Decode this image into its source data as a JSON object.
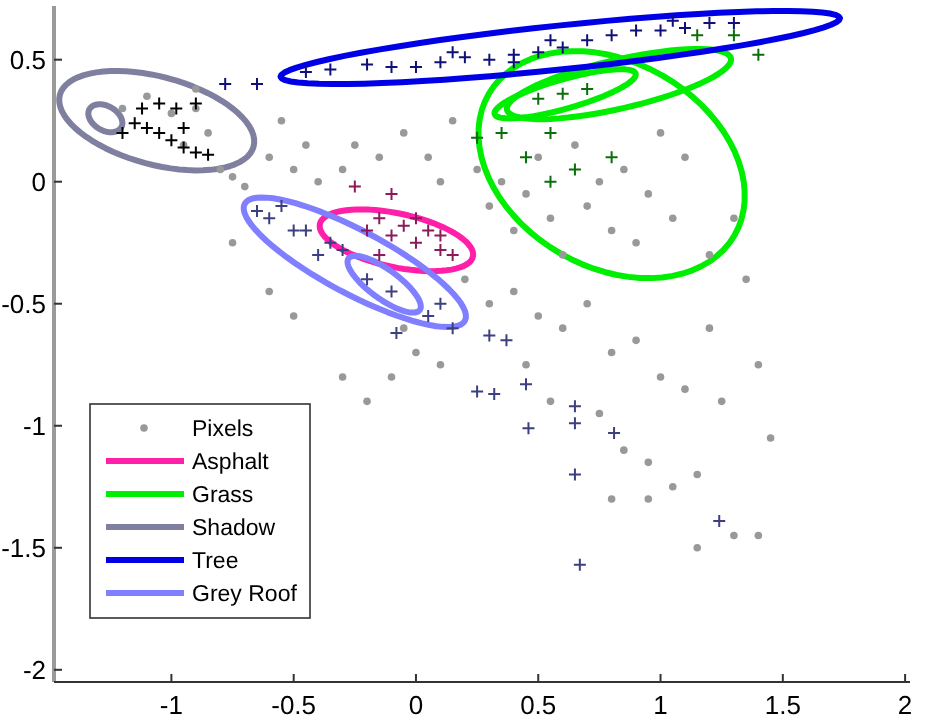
{
  "chart_data": {
    "type": "scatter",
    "legend": "bottom left",
    "grid": false,
    "xlim": [
      -1.48,
      2.02
    ],
    "xticks": [
      -1,
      -0.5,
      0,
      0.5,
      1,
      1.5,
      2
    ],
    "ylim": [
      -2.05,
      0.72
    ],
    "yticks": [
      -2,
      -1.5,
      -1,
      -0.5,
      0,
      0.5
    ],
    "series": [
      {
        "name": "Pixels",
        "marker": "circle",
        "color": "#999999",
        "x": [
          -0.9,
          -0.85,
          -0.95,
          -0.8,
          -0.75,
          -0.7,
          -0.6,
          -0.5,
          -0.45,
          -0.4,
          -0.3,
          -0.25,
          -0.15,
          -0.05,
          0.05,
          0.1,
          0.15,
          0.25,
          0.3,
          0.35,
          0.4,
          0.45,
          0.5,
          0.55,
          0.6,
          0.65,
          0.7,
          0.75,
          0.8,
          0.85,
          0.9,
          0.95,
          1.0,
          1.05,
          1.1,
          1.2,
          1.3,
          1.35,
          0.2,
          0.3,
          0.4,
          0.5,
          0.6,
          0.7,
          0.8,
          0.9,
          1.0,
          1.1,
          1.2,
          1.25,
          1.4,
          1.45,
          0.45,
          0.55,
          0.75,
          0.85,
          0.95,
          1.05,
          1.15,
          1.3,
          1.4,
          0.8,
          0.95,
          1.15,
          0.0,
          -0.1,
          -0.05,
          0.1,
          -0.5,
          -0.6,
          -0.75,
          -0.55,
          -1.1,
          -1.0,
          -1.2,
          -0.9,
          -0.3,
          -0.2
        ],
        "values": [
          0.3,
          0.2,
          0.15,
          0.05,
          0.02,
          -0.02,
          0.1,
          0.05,
          0.15,
          0.0,
          0.05,
          0.15,
          0.1,
          0.2,
          0.1,
          0.0,
          0.25,
          0.05,
          -0.1,
          0.0,
          -0.2,
          -0.05,
          0.1,
          -0.15,
          -0.3,
          0.15,
          -0.1,
          0.0,
          -0.2,
          0.05,
          -0.25,
          -0.05,
          0.2,
          -0.15,
          0.1,
          -0.3,
          -0.15,
          -0.4,
          -0.4,
          -0.5,
          -0.45,
          -0.55,
          -0.6,
          -0.5,
          -0.7,
          -0.65,
          -0.8,
          -0.85,
          -0.6,
          -0.9,
          -0.75,
          -1.05,
          -0.75,
          -0.9,
          -0.95,
          -1.1,
          -1.15,
          -1.25,
          -1.2,
          -1.45,
          -1.45,
          -1.3,
          -1.3,
          -1.5,
          -0.7,
          -0.8,
          -0.6,
          -0.75,
          -0.55,
          -0.45,
          -0.25,
          0.25,
          0.35,
          0.28,
          0.3,
          0.38,
          -0.8,
          -0.9
        ]
      },
      {
        "marker": "cross",
        "color": "#10107a",
        "x": [
          -0.78,
          -0.65,
          -0.45,
          -0.35,
          -0.2,
          -0.1,
          0.1,
          0.2,
          0.3,
          0.4,
          0.5,
          0.6,
          0.7,
          0.8,
          0.9,
          1.0,
          1.1,
          1.2,
          1.3,
          0.0,
          0.4,
          0.15,
          0.55,
          1.05
        ],
        "values": [
          0.4,
          0.4,
          0.45,
          0.46,
          0.48,
          0.47,
          0.49,
          0.51,
          0.5,
          0.52,
          0.53,
          0.55,
          0.58,
          0.6,
          0.62,
          0.62,
          0.63,
          0.65,
          0.65,
          0.47,
          0.49,
          0.53,
          0.58,
          0.66
        ]
      },
      {
        "marker": "cross",
        "color": "#3c3f80",
        "x": [
          -0.55,
          -0.45,
          -0.35,
          -0.2,
          -0.1,
          0.05,
          -0.4,
          -0.5,
          -0.6,
          0.15,
          -0.08,
          0.3,
          0.37,
          0.65,
          0.65,
          0.46,
          0.45,
          0.81,
          0.65,
          1.24,
          0.67,
          0.25,
          0.32,
          -0.3,
          0.1,
          -0.65
        ],
        "values": [
          -0.1,
          -0.2,
          -0.25,
          -0.4,
          -0.45,
          -0.55,
          -0.3,
          -0.2,
          -0.15,
          -0.6,
          -0.62,
          -0.63,
          -0.65,
          -0.92,
          -0.99,
          -1.01,
          -0.83,
          -1.03,
          -1.2,
          -1.39,
          -1.57,
          -0.86,
          -0.87,
          -0.28,
          -0.5,
          -0.12
        ]
      },
      {
        "marker": "cross",
        "color": "#0a6e0a",
        "x": [
          0.5,
          0.6,
          0.7,
          0.25,
          0.45,
          0.55,
          0.65,
          0.55,
          0.8,
          1.3,
          1.15,
          1.4,
          0.35
        ],
        "values": [
          0.34,
          0.36,
          0.38,
          0.18,
          0.1,
          0.2,
          0.05,
          0.0,
          0.1,
          0.6,
          0.6,
          0.52,
          0.2
        ]
      },
      {
        "marker": "cross",
        "color": "#8b1a5a",
        "x": [
          -0.2,
          -0.15,
          -0.1,
          -0.05,
          0.0,
          0.05,
          0.1,
          0.15,
          -0.25,
          -0.1,
          0.0,
          0.1,
          -0.15
        ],
        "values": [
          -0.2,
          -0.15,
          -0.22,
          -0.18,
          -0.25,
          -0.2,
          -0.28,
          -0.3,
          -0.02,
          -0.05,
          -0.15,
          -0.22,
          -0.3
        ]
      },
      {
        "marker": "cross",
        "color": "#000000",
        "x": [
          -1.15,
          -1.1,
          -1.05,
          -1.0,
          -0.95,
          -0.9,
          -0.85,
          -1.12,
          -1.05,
          -0.98,
          -0.95,
          -1.2,
          -0.9
        ],
        "values": [
          0.24,
          0.22,
          0.2,
          0.17,
          0.14,
          0.12,
          0.11,
          0.3,
          0.32,
          0.3,
          0.22,
          0.2,
          0.32
        ]
      },
      {
        "name": "Asphalt",
        "type": "line",
        "marker": "none",
        "color": "#ff1fa8"
      },
      {
        "name": "Grass",
        "type": "line",
        "marker": "none",
        "color": "#00ee00"
      },
      {
        "name": "Shadow",
        "type": "line",
        "marker": "none",
        "color": "#7f7fa0"
      },
      {
        "name": "Tree",
        "type": "line",
        "marker": "none",
        "color": "#0000e6"
      },
      {
        "name": "Grey Roof",
        "type": "line",
        "marker": "none",
        "color": "#7f7fff"
      }
    ]
  }
}
